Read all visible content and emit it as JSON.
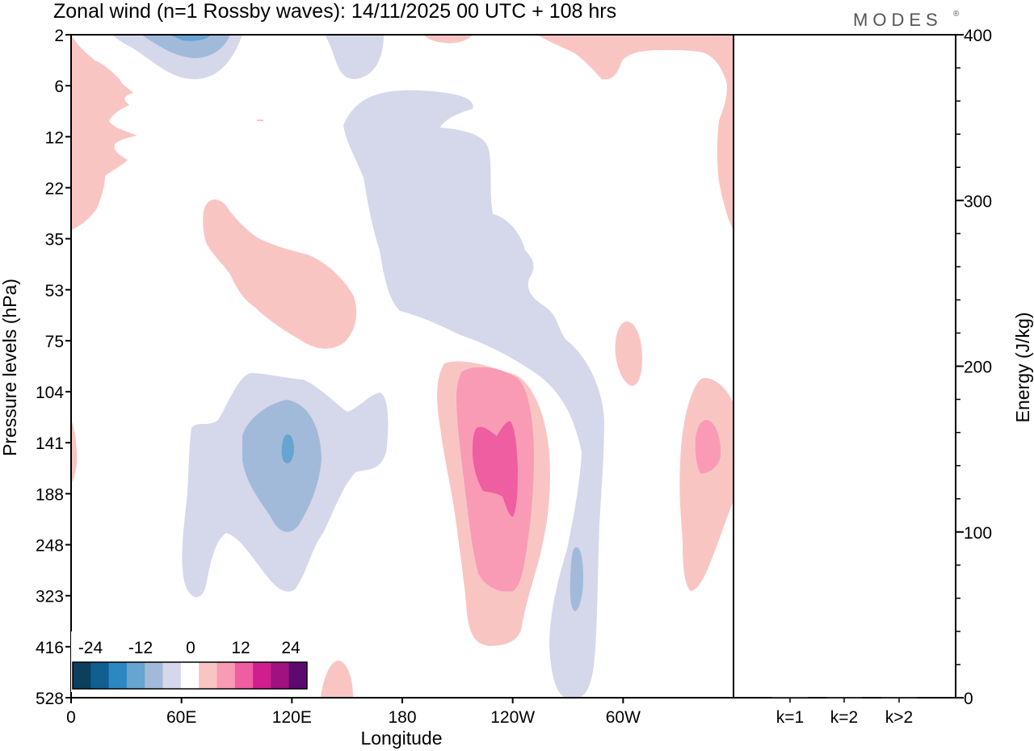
{
  "chart_data": {
    "type": "contour",
    "title": "Zonal wind (n=1 Rossby waves):  14/11/2025  00 UTC  + 108 hrs",
    "brand": "MODES",
    "brand_mark": "®",
    "main_panel": {
      "xlabel": "Longitude",
      "ylabel": "Pressure levels (hPa)",
      "x_ticks": [
        "0",
        "60E",
        "120E",
        "180",
        "120W",
        "60W"
      ],
      "y_ticks": [
        "2",
        "6",
        "12",
        "22",
        "35",
        "53",
        "75",
        "104",
        "141",
        "188",
        "248",
        "323",
        "416",
        "528"
      ],
      "colorbar": {
        "labels": [
          "-24",
          "-12",
          "0",
          "12",
          "24"
        ],
        "colors": [
          "#0b3f5e",
          "#0f5f91",
          "#2d88c2",
          "#65a5cf",
          "#a2bad9",
          "#d5d7ea",
          "#ffffff",
          "#f9c5c3",
          "#f99bb5",
          "#ef5ea0",
          "#cf1f8f",
          "#a0127f",
          "#5d0a70"
        ]
      },
      "contours": [
        {
          "level": "neg1",
          "color": "#d5d7ea",
          "desc": "lower-level negative anomaly near 60E-150E"
        },
        {
          "level": "neg2",
          "color": "#a2bad9",
          "desc": "core near 120E, 141-248 hPa"
        },
        {
          "level": "neg3",
          "color": "#65a5cf",
          "desc": "small core near 120E, 141 hPa"
        },
        {
          "level": "pos1",
          "color": "#f9c5c3",
          "desc": "positive anomaly near 120W, 104-416 hPa"
        },
        {
          "level": "pos2",
          "color": "#f99bb5",
          "desc": "core near 120W"
        },
        {
          "level": "pos3",
          "color": "#ef5ea0",
          "desc": "inner core near 120W, 141-188 hPa"
        }
      ]
    },
    "energy_panel": {
      "type": "bar",
      "ylabel": "Energy (J/kg)",
      "categories": [
        "k=1",
        "k=2",
        "k>2"
      ],
      "values": [
        0.5,
        0.3,
        0.3
      ],
      "ylim": [
        0,
        400
      ],
      "y_ticks": [
        "0",
        "100",
        "200",
        "300",
        "400"
      ]
    }
  }
}
